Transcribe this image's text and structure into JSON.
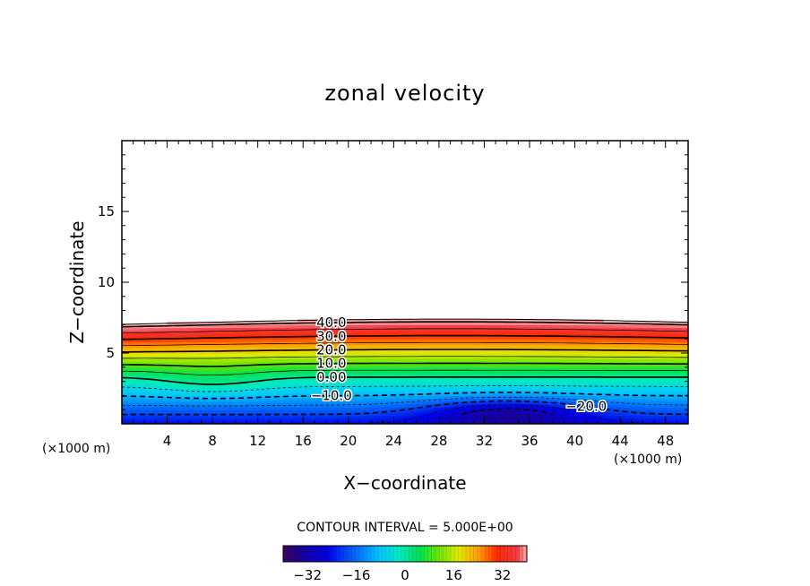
{
  "chart_data": {
    "type": "contour",
    "title": "zonal velocity",
    "xlabel": "X−coordinate",
    "ylabel": "Z−coordinate",
    "x_unit_left": "(×1000 m)",
    "x_unit_right": "(×1000 m)",
    "xlim": [
      0,
      50
    ],
    "ylim": [
      0,
      20
    ],
    "x_ticks": [
      4,
      8,
      12,
      16,
      20,
      24,
      28,
      32,
      36,
      40,
      44,
      48
    ],
    "y_ticks": [
      5,
      10,
      15
    ],
    "contour_interval_text": "CONTOUR INTERVAL = 5.000E+00",
    "colorbar": {
      "range": [
        -40,
        40
      ],
      "ticks": [
        -32,
        -16,
        0,
        16,
        32
      ],
      "colormap": "rainbow"
    },
    "contour_labels": [
      {
        "text": "40.0",
        "level": 40
      },
      {
        "text": "30.0",
        "level": 30
      },
      {
        "text": "20.0",
        "level": 20
      },
      {
        "text": "10.0",
        "level": 10
      },
      {
        "text": "0.00",
        "level": 0
      },
      {
        "text": "−10.0",
        "level": -10
      },
      {
        "text": "−20.0",
        "level": -20
      }
    ],
    "field_description": "Velocity increases with height from about -25 near the surface to about 40 at z≈7 km; above z≈7.5 km the field is blank (white). Strongest negative core near x≈30–40 km, z<2 km.",
    "grid": false,
    "legend": "colorbar-bottom"
  }
}
